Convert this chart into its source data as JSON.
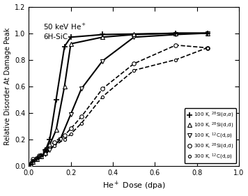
{
  "xlabel": "He$^+$ Dose (dpa)",
  "ylabel": "Relative Disorder At Damage Peak",
  "xlim": [
    0.0,
    1.0
  ],
  "ylim": [
    0.0,
    1.2
  ],
  "xticks": [
    0.0,
    0.2,
    0.4,
    0.6,
    0.8,
    1.0
  ],
  "yticks": [
    0.0,
    0.2,
    0.4,
    0.6,
    0.8,
    1.0,
    1.2
  ],
  "annotation_line1": "50 keV He$^+$",
  "annotation_line2": "6H-SiC",
  "series": [
    {
      "label": "100 K, $^{28}$Si($\\alpha$,$\\alpha$)",
      "x": [
        0.01,
        0.02,
        0.04,
        0.06,
        0.08,
        0.1,
        0.13,
        0.17,
        0.2,
        0.35,
        0.7,
        0.85
      ],
      "y": [
        0.01,
        0.03,
        0.05,
        0.07,
        0.12,
        0.2,
        0.5,
        0.9,
        0.97,
        0.99,
        1.0,
        1.0
      ],
      "marker": "+",
      "linestyle": "-",
      "color": "#000000",
      "mfc": "#000000",
      "ms": 6,
      "mew": 1.2,
      "lw": 1.5,
      "zorder": 5
    },
    {
      "label": "100 K, $^{28}$Si(d,d)",
      "x": [
        0.01,
        0.02,
        0.04,
        0.06,
        0.08,
        0.1,
        0.13,
        0.17,
        0.2,
        0.35,
        0.5,
        0.7,
        0.85
      ],
      "y": [
        0.01,
        0.03,
        0.05,
        0.07,
        0.1,
        0.16,
        0.27,
        0.6,
        0.92,
        0.97,
        0.99,
        1.0,
        1.0
      ],
      "marker": "^",
      "linestyle": "-",
      "color": "#000000",
      "mfc": "white",
      "ms": 5,
      "mew": 0.8,
      "lw": 1.5,
      "zorder": 4
    },
    {
      "label": "100 K, $^{12}$C(d,p)",
      "x": [
        0.01,
        0.02,
        0.04,
        0.06,
        0.08,
        0.1,
        0.15,
        0.2,
        0.25,
        0.35,
        0.5,
        0.7,
        0.85
      ],
      "y": [
        0.01,
        0.03,
        0.05,
        0.07,
        0.09,
        0.12,
        0.2,
        0.39,
        0.58,
        0.79,
        0.97,
        0.99,
        1.0
      ],
      "marker": "v",
      "linestyle": "-",
      "color": "#000000",
      "mfc": "white",
      "ms": 5,
      "mew": 0.8,
      "lw": 1.5,
      "zorder": 3
    },
    {
      "label": "300 K, $^{28}$Si(d,d)",
      "x": [
        0.02,
        0.05,
        0.08,
        0.12,
        0.17,
        0.2,
        0.25,
        0.35,
        0.5,
        0.7,
        0.85
      ],
      "y": [
        0.05,
        0.08,
        0.12,
        0.18,
        0.23,
        0.28,
        0.37,
        0.58,
        0.77,
        0.91,
        0.89
      ],
      "marker": "o",
      "linestyle": "--",
      "color": "#000000",
      "mfc": "white",
      "ms": 4,
      "mew": 0.8,
      "lw": 1.2,
      "zorder": 2
    },
    {
      "label": "300 K, $^{12}$C(d,p)",
      "x": [
        0.02,
        0.05,
        0.08,
        0.12,
        0.17,
        0.2,
        0.25,
        0.35,
        0.5,
        0.7,
        0.85
      ],
      "y": [
        0.04,
        0.07,
        0.1,
        0.15,
        0.2,
        0.24,
        0.32,
        0.52,
        0.72,
        0.8,
        0.89
      ],
      "marker": "o",
      "linestyle": "--",
      "color": "#000000",
      "mfc": "white",
      "ms": 3,
      "mew": 0.8,
      "lw": 1.2,
      "zorder": 2
    }
  ],
  "legend_labels": [
    "100 K, $^{28}$Si($\\alpha$,$\\alpha$)",
    "100 K, $^{28}$Si(d,d)",
    "100 K, $^{12}$C(d,p)",
    "300 K, $^{28}$Si(d,d)",
    "300 K, $^{12}$C(d,p)"
  ],
  "figsize": [
    3.56,
    2.81
  ],
  "dpi": 100
}
